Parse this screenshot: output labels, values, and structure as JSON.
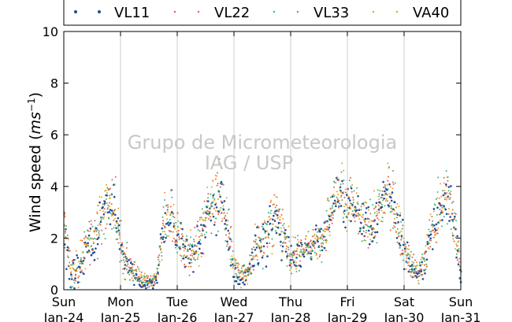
{
  "chart_data": {
    "type": "scatter",
    "title": "",
    "xlabel": "",
    "ylabel": "Wind speed (ms⁻¹)",
    "ylabel_main": "Wind speed (",
    "ylabel_unit": "ms",
    "ylabel_exp": "−1",
    "ylabel_close": ")",
    "ylim": [
      0,
      10
    ],
    "yticks": [
      "0",
      "2",
      "4",
      "6",
      "8",
      "10"
    ],
    "xlim": [
      "2016-01-24",
      "2016-01-31"
    ],
    "x_ticks": [
      {
        "day": "Sun",
        "date": "Jan-24"
      },
      {
        "day": "Mon",
        "date": "Jan-25"
      },
      {
        "day": "Tue",
        "date": "Jan-26"
      },
      {
        "day": "Wed",
        "date": "Jan-27"
      },
      {
        "day": "Thu",
        "date": "Jan-28"
      },
      {
        "day": "Fri",
        "date": "Jan-29"
      },
      {
        "day": "Sat",
        "date": "Jan-30"
      },
      {
        "day": "Sun",
        "date": "Jan-31"
      }
    ],
    "grid": "vertical only",
    "legend_position": "top",
    "watermark": [
      "Grupo de Micrometeorologia",
      "IAG / USP"
    ],
    "series": [
      {
        "name": "VL11",
        "color": "#1f4e96"
      },
      {
        "name": "VL22",
        "color": "#e0604a"
      },
      {
        "name": "VL33",
        "color": "#3cb878"
      },
      {
        "name": "VA40",
        "color": "#f0a020"
      }
    ],
    "x": [
      "2016-01-24 00:00",
      "2016-01-24 03:00",
      "2016-01-24 06:00",
      "2016-01-24 09:00",
      "2016-01-24 12:00",
      "2016-01-24 15:00",
      "2016-01-24 18:00",
      "2016-01-24 21:00",
      "2016-01-25 00:00",
      "2016-01-25 03:00",
      "2016-01-25 06:00",
      "2016-01-25 09:00",
      "2016-01-25 12:00",
      "2016-01-25 15:00",
      "2016-01-25 18:00",
      "2016-01-25 21:00",
      "2016-01-26 00:00",
      "2016-01-26 03:00",
      "2016-01-26 06:00",
      "2016-01-26 09:00",
      "2016-01-26 12:00",
      "2016-01-26 15:00",
      "2016-01-26 18:00",
      "2016-01-26 21:00",
      "2016-01-27 00:00",
      "2016-01-27 03:00",
      "2016-01-27 06:00",
      "2016-01-27 09:00",
      "2016-01-27 12:00",
      "2016-01-27 15:00",
      "2016-01-27 18:00",
      "2016-01-27 21:00",
      "2016-01-28 00:00",
      "2016-01-28 03:00",
      "2016-01-28 06:00",
      "2016-01-28 09:00",
      "2016-01-28 12:00",
      "2016-01-28 15:00",
      "2016-01-28 18:00",
      "2016-01-28 21:00",
      "2016-01-29 00:00",
      "2016-01-29 03:00",
      "2016-01-29 06:00",
      "2016-01-29 09:00",
      "2016-01-29 12:00",
      "2016-01-29 15:00",
      "2016-01-29 18:00",
      "2016-01-29 21:00",
      "2016-01-30 00:00",
      "2016-01-30 03:00",
      "2016-01-30 06:00",
      "2016-01-30 09:00",
      "2016-01-30 12:00",
      "2016-01-30 15:00",
      "2016-01-30 18:00",
      "2016-01-30 21:00",
      "2016-01-31 00:00"
    ],
    "mean_speed": [
      2.4,
      0.6,
      0.8,
      1.6,
      2.0,
      2.6,
      3.4,
      3.2,
      1.6,
      1.0,
      0.6,
      0.4,
      0.3,
      0.4,
      2.4,
      2.8,
      2.2,
      1.6,
      1.4,
      1.8,
      2.8,
      3.6,
      3.8,
      2.4,
      1.0,
      0.5,
      0.7,
      1.6,
      1.9,
      2.4,
      3.0,
      2.2,
      1.0,
      1.5,
      1.6,
      1.8,
      2.0,
      2.4,
      3.6,
      3.8,
      3.4,
      3.2,
      2.6,
      2.4,
      2.8,
      3.6,
      3.8,
      2.8,
      1.6,
      0.9,
      0.6,
      1.4,
      2.4,
      3.2,
      3.8,
      2.6,
      0.8
    ],
    "spread": [
      1.2,
      0.6,
      0.6,
      0.7,
      0.8,
      0.9,
      1.0,
      1.0,
      0.8,
      0.5,
      0.4,
      0.3,
      0.2,
      0.3,
      0.9,
      0.9,
      0.9,
      0.8,
      0.7,
      0.8,
      0.9,
      1.0,
      1.1,
      0.9,
      0.6,
      0.4,
      0.4,
      0.7,
      0.8,
      0.8,
      1.0,
      0.9,
      0.6,
      0.6,
      0.5,
      0.5,
      0.6,
      0.7,
      0.9,
      0.9,
      0.9,
      0.9,
      0.8,
      0.8,
      0.8,
      0.9,
      1.0,
      0.9,
      0.7,
      0.5,
      0.4,
      0.6,
      0.8,
      0.9,
      1.0,
      0.9,
      0.5
    ]
  }
}
